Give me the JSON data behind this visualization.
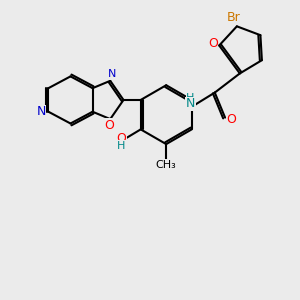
{
  "bg_color": "#ebebeb",
  "bond_color": "#000000",
  "bond_width": 1.5,
  "atom_colors": {
    "Br": "#cc7700",
    "O": "#ff0000",
    "N": "#0000cc",
    "NH": "#008888",
    "H": "#008888",
    "C": "#000000"
  },
  "font_size": 9,
  "fig_size": [
    3.0,
    3.0
  ],
  "dpi": 100
}
